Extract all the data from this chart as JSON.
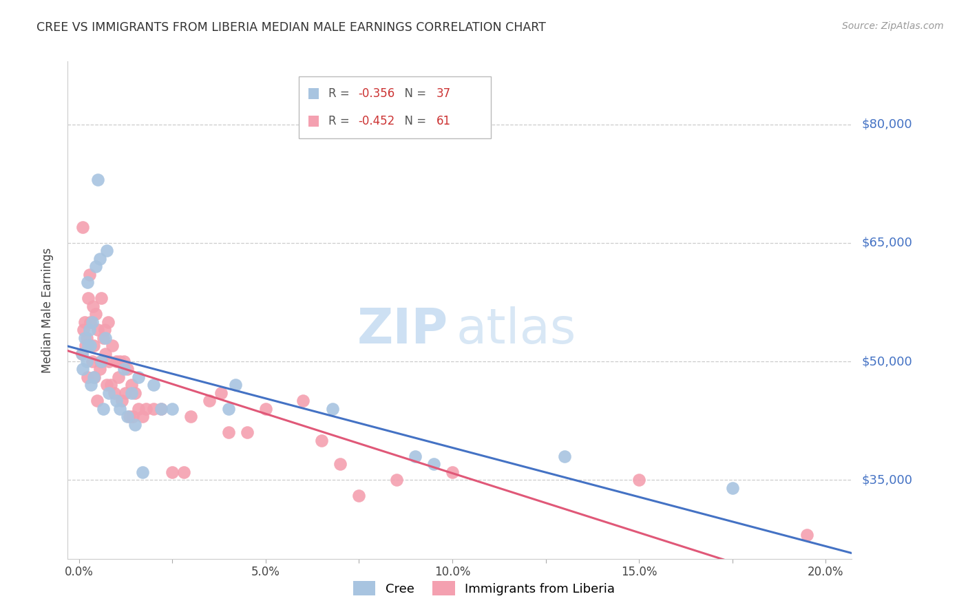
{
  "title": "CREE VS IMMIGRANTS FROM LIBERIA MEDIAN MALE EARNINGS CORRELATION CHART",
  "source": "Source: ZipAtlas.com",
  "xlabel_ticks": [
    "0.0%",
    "",
    "5.0%",
    "",
    "10.0%",
    "",
    "15.0%",
    "",
    "20.0%"
  ],
  "xlabel_vals": [
    0.0,
    0.025,
    0.05,
    0.075,
    0.1,
    0.125,
    0.15,
    0.175,
    0.2
  ],
  "ylabel_ticks": [
    "$35,000",
    "$50,000",
    "$65,000",
    "$80,000"
  ],
  "ylabel_vals": [
    35000,
    50000,
    65000,
    80000
  ],
  "ylim": [
    25000,
    88000
  ],
  "xlim": [
    -0.003,
    0.207
  ],
  "cree_R": -0.356,
  "cree_N": 37,
  "liberia_R": -0.452,
  "liberia_N": 61,
  "cree_color": "#a8c4e0",
  "liberia_color": "#f4a0b0",
  "cree_line_color": "#4472c4",
  "liberia_line_color": "#e05878",
  "legend_label_cree": "Cree",
  "legend_label_liberia": "Immigrants from Liberia",
  "ylabel": "Median Male Earnings",
  "watermark_zip": "ZIP",
  "watermark_atlas": "atlas",
  "cree_x": [
    0.0008,
    0.001,
    0.0015,
    0.002,
    0.0022,
    0.0025,
    0.0028,
    0.003,
    0.0032,
    0.0035,
    0.004,
    0.0045,
    0.005,
    0.0055,
    0.006,
    0.0065,
    0.007,
    0.0075,
    0.008,
    0.01,
    0.011,
    0.012,
    0.013,
    0.014,
    0.015,
    0.016,
    0.017,
    0.02,
    0.022,
    0.025,
    0.04,
    0.042,
    0.068,
    0.09,
    0.095,
    0.13,
    0.175
  ],
  "cree_y": [
    51000,
    49000,
    53000,
    50000,
    60000,
    52000,
    54000,
    52000,
    47000,
    55000,
    48000,
    62000,
    73000,
    63000,
    50000,
    44000,
    53000,
    64000,
    46000,
    45000,
    44000,
    49000,
    43000,
    46000,
    42000,
    48000,
    36000,
    47000,
    44000,
    44000,
    44000,
    47000,
    44000,
    38000,
    37000,
    38000,
    34000
  ],
  "liberia_x": [
    0.0008,
    0.001,
    0.0012,
    0.0015,
    0.0018,
    0.002,
    0.0022,
    0.0025,
    0.0028,
    0.003,
    0.0035,
    0.0038,
    0.004,
    0.0042,
    0.0045,
    0.0048,
    0.005,
    0.0055,
    0.0058,
    0.006,
    0.0065,
    0.0068,
    0.007,
    0.0075,
    0.0078,
    0.008,
    0.0085,
    0.009,
    0.0095,
    0.01,
    0.0105,
    0.011,
    0.0115,
    0.012,
    0.0125,
    0.013,
    0.0135,
    0.014,
    0.0145,
    0.015,
    0.016,
    0.017,
    0.018,
    0.02,
    0.022,
    0.025,
    0.028,
    0.03,
    0.035,
    0.038,
    0.04,
    0.045,
    0.05,
    0.06,
    0.065,
    0.07,
    0.075,
    0.085,
    0.1,
    0.15,
    0.195
  ],
  "liberia_y": [
    51000,
    67000,
    54000,
    55000,
    52000,
    53000,
    48000,
    58000,
    61000,
    55000,
    50000,
    57000,
    52000,
    48000,
    56000,
    45000,
    54000,
    49000,
    50000,
    58000,
    53000,
    54000,
    51000,
    47000,
    55000,
    50000,
    47000,
    52000,
    46000,
    50000,
    48000,
    50000,
    45000,
    50000,
    46000,
    49000,
    43000,
    47000,
    43000,
    46000,
    44000,
    43000,
    44000,
    44000,
    44000,
    36000,
    36000,
    43000,
    45000,
    46000,
    41000,
    41000,
    44000,
    45000,
    40000,
    37000,
    33000,
    35000,
    36000,
    35000,
    28000
  ]
}
